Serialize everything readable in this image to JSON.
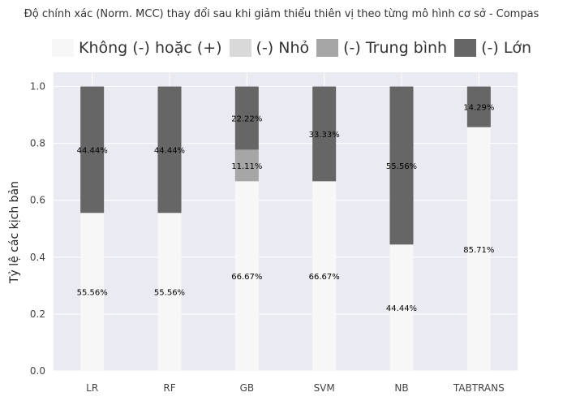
{
  "chart_data": {
    "type": "bar",
    "stacked": true,
    "title": "Độ chính xác (Norm. MCC) thay đổi sau khi giảm thiểu thiên vị theo từng mô hình cơ sở - Compas",
    "xlabel": "",
    "ylabel": "Tỷ lệ các kịch bản",
    "ylim": [
      0,
      1.05
    ],
    "yticks": [
      "0.0",
      "0.2",
      "0.4",
      "0.6",
      "0.8",
      "1.0"
    ],
    "categories": [
      "LR",
      "RF",
      "GB",
      "SVM",
      "NB",
      "TABTRANS"
    ],
    "series": [
      {
        "name": "Không (-) hoặc (+)",
        "color": "#f7f7f7",
        "values": [
          0.5556,
          0.5556,
          0.6667,
          0.6667,
          0.4444,
          0.8571
        ],
        "labels": [
          "55.56%",
          "55.56%",
          "66.67%",
          "66.67%",
          "44.44%",
          "85.71%"
        ]
      },
      {
        "name": "(-) Nhỏ",
        "color": "#d9d9d9",
        "values": [
          0,
          0,
          0,
          0,
          0,
          0
        ],
        "labels": [
          "",
          "",
          "",
          "",
          "",
          ""
        ]
      },
      {
        "name": "(-) Trung bình",
        "color": "#a6a6a6",
        "values": [
          0,
          0,
          0.1111,
          0,
          0,
          0
        ],
        "labels": [
          "",
          "",
          "11.11%",
          "",
          "",
          ""
        ]
      },
      {
        "name": "(-) Lớn",
        "color": "#666666",
        "values": [
          0.4444,
          0.4444,
          0.2222,
          0.3333,
          0.5556,
          0.1429
        ],
        "labels": [
          "44.44%",
          "44.44%",
          "22.22%",
          "33.33%",
          "55.56%",
          "14.29%"
        ]
      }
    ],
    "grid": true,
    "background": "#eaeaf2",
    "legend_position": "top"
  }
}
